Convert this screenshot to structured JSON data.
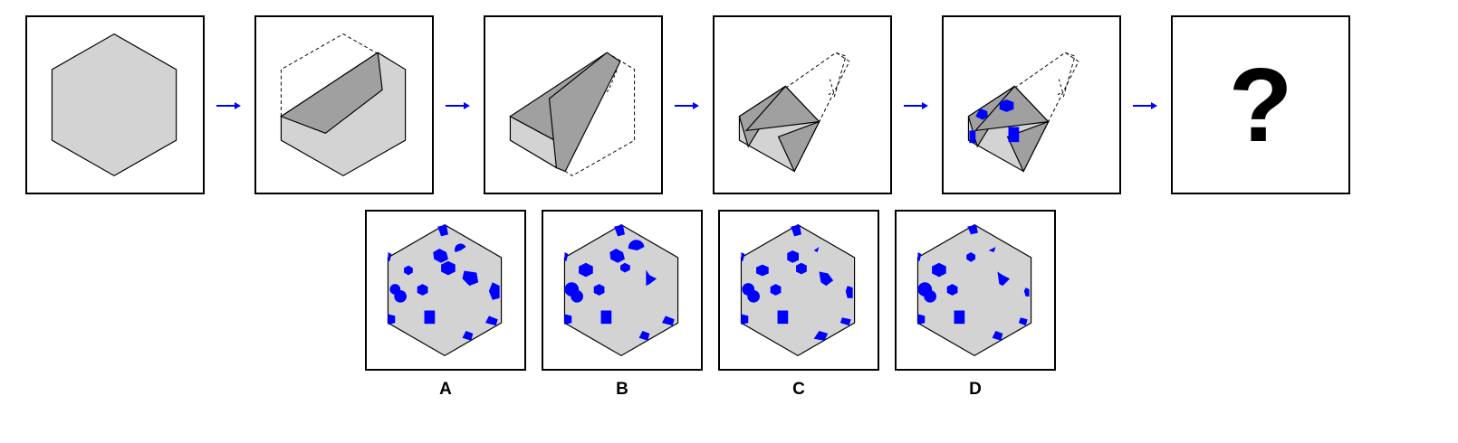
{
  "question_mark": "?",
  "colors": {
    "paper": "#d3d3d3",
    "fold": "#a0a0a0",
    "hole": "#0000ff",
    "arrow": "#0000ff",
    "border": "#000000"
  },
  "sequence": [
    {
      "step": 1,
      "content": "unfolded-hexagon"
    },
    {
      "step": 2,
      "content": "first-fold"
    },
    {
      "step": 3,
      "content": "second-fold"
    },
    {
      "step": 4,
      "content": "third-fold"
    },
    {
      "step": 5,
      "content": "punched-holes"
    },
    {
      "step": 6,
      "content": "question"
    }
  ],
  "options": [
    {
      "label": "A"
    },
    {
      "label": "B"
    },
    {
      "label": "C"
    },
    {
      "label": "D"
    }
  ]
}
